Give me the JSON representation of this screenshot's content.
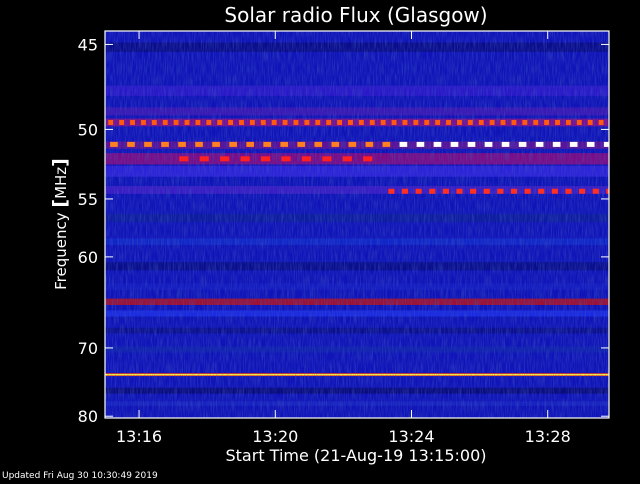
{
  "chart_data": {
    "type": "heatmap",
    "title": "Solar radio Flux (Glasgow)",
    "xlabel": "Start Time (21-Aug-19 13:15:00)",
    "ylabel_left": "Frequency ",
    "ylabel_unit": "MHz",
    "y_ticks": [
      45,
      50,
      55,
      60,
      70,
      80
    ],
    "x_ticks": [
      "13:16",
      "13:20",
      "13:24",
      "13:28"
    ],
    "x_tick_minutes": [
      1,
      5,
      9,
      13
    ],
    "x_range_minutes": [
      0,
      14.8
    ],
    "y_range": [
      44.3,
      80.3
    ],
    "y_scale": "reciprocal",
    "colors": {
      "background": "#000000",
      "axis": "#ffffff",
      "base": "#1014b8"
    },
    "bands": [
      {
        "freq_lo": 44.9,
        "freq_hi": 45.4,
        "color": "#0a0c8a"
      },
      {
        "freq_lo": 47.3,
        "freq_hi": 47.9,
        "color": "#2a18c8"
      },
      {
        "freq_lo": 48.6,
        "freq_hi": 49.1,
        "color": "#3a16b4"
      },
      {
        "freq_lo": 49.3,
        "freq_hi": 49.8,
        "color": "#7a1090"
      },
      {
        "freq_lo": 50.8,
        "freq_hi": 51.3,
        "color": "#5a1298"
      },
      {
        "freq_lo": 51.6,
        "freq_hi": 52.4,
        "color": "#7c0c86"
      },
      {
        "freq_lo": 52.5,
        "freq_hi": 53.3,
        "color": "#2c22d8"
      },
      {
        "freq_lo": 54.0,
        "freq_hi": 54.6,
        "color": "#3a1cc4"
      },
      {
        "freq_lo": 56.2,
        "freq_hi": 56.9,
        "color": "#0e1ca0"
      },
      {
        "freq_lo": 58.3,
        "freq_hi": 58.9,
        "color": "#1226c8"
      },
      {
        "freq_lo": 60.5,
        "freq_hi": 61.3,
        "color": "#0a0e8c"
      },
      {
        "freq_lo": 62.6,
        "freq_hi": 63.3,
        "color": "#141ac0"
      },
      {
        "freq_lo": 64.2,
        "freq_hi": 64.9,
        "color": "#a01030"
      },
      {
        "freq_lo": 65.5,
        "freq_hi": 66.2,
        "color": "#1a2ae0"
      },
      {
        "freq_lo": 67.5,
        "freq_hi": 68.2,
        "color": "#0c1090"
      },
      {
        "freq_lo": 69.8,
        "freq_hi": 70.6,
        "color": "#1020b0"
      },
      {
        "freq_lo": 73.4,
        "freq_hi": 73.8,
        "color": "#ff3000"
      },
      {
        "freq_lo": 73.5,
        "freq_hi": 73.7,
        "color": "#ffff40"
      },
      {
        "freq_lo": 75.5,
        "freq_hi": 76.4,
        "color": "#0a0c7e"
      },
      {
        "freq_lo": 77.6,
        "freq_hi": 78.3,
        "color": "#1822c0"
      }
    ],
    "pulse_rows": [
      {
        "freq": 49.55,
        "color": "#ff5a10",
        "t_start": 0.0,
        "t_end": 14.8,
        "period": 0.32
      },
      {
        "freq": 51.0,
        "color": "#ff8020",
        "t_start": 0.0,
        "t_end": 8.5,
        "period": 0.5
      },
      {
        "freq": 51.0,
        "color": "#ffffff",
        "t_start": 8.5,
        "t_end": 14.8,
        "period": 0.5
      },
      {
        "freq": 52.0,
        "color": "#ff2020",
        "t_start": 2.0,
        "t_end": 8.0,
        "period": 0.6
      },
      {
        "freq": 54.4,
        "color": "#ff3020",
        "t_start": 8.2,
        "t_end": 14.8,
        "period": 0.4
      }
    ],
    "grid": false,
    "legend": "none"
  },
  "footer": {
    "updated": "Updated Fri Aug 30 10:30:49 2019"
  }
}
